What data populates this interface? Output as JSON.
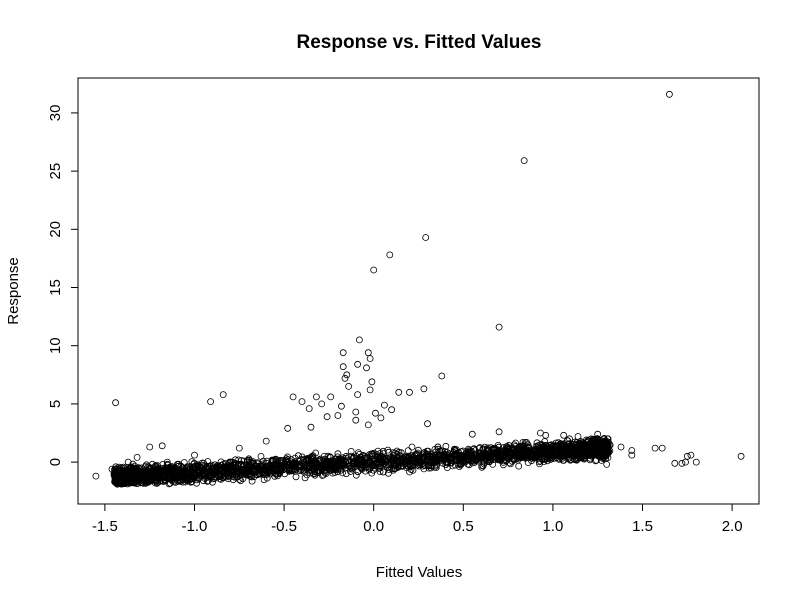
{
  "chart_data": {
    "type": "scatter",
    "title": "Response vs. Fitted Values",
    "xlabel": "Fitted Values",
    "ylabel": "Response",
    "xlim": [
      -1.65,
      2.15
    ],
    "ylim": [
      -3.6,
      33.0
    ],
    "xticks": [
      -1.5,
      -1.0,
      -0.5,
      0.0,
      0.5,
      1.0,
      1.5,
      2.0
    ],
    "xtick_labels": [
      "-1.5",
      "-1.0",
      "-0.5",
      "0.0",
      "0.5",
      "1.0",
      "1.5",
      "2.0"
    ],
    "yticks": [
      0,
      5,
      10,
      15,
      20,
      25,
      30
    ],
    "ytick_labels": [
      "0",
      "5",
      "10",
      "15",
      "20",
      "25",
      "30"
    ],
    "grid": false,
    "marker": "open-circle",
    "colors": {
      "point": "#000000",
      "axis": "#000000",
      "background": "#ffffff"
    },
    "cloud": {
      "description": "dense band of ~3000 points",
      "x_range": [
        -1.45,
        1.32
      ],
      "trend_intercept": 0.0,
      "trend_slope": 0.9,
      "spread": 0.75,
      "n": 3000
    },
    "points": [
      {
        "x": 1.65,
        "y": 31.6
      },
      {
        "x": 0.84,
        "y": 25.9
      },
      {
        "x": 0.29,
        "y": 19.3
      },
      {
        "x": 0.09,
        "y": 17.8
      },
      {
        "x": 0.0,
        "y": 16.5
      },
      {
        "x": 0.7,
        "y": 11.6
      },
      {
        "x": -0.08,
        "y": 10.5
      },
      {
        "x": -0.17,
        "y": 9.4
      },
      {
        "x": -0.03,
        "y": 9.4
      },
      {
        "x": -0.02,
        "y": 8.9
      },
      {
        "x": -0.09,
        "y": 8.4
      },
      {
        "x": -0.17,
        "y": 8.2
      },
      {
        "x": -0.04,
        "y": 8.1
      },
      {
        "x": -0.15,
        "y": 7.5
      },
      {
        "x": -0.16,
        "y": 7.2
      },
      {
        "x": -0.01,
        "y": 6.9
      },
      {
        "x": -0.14,
        "y": 6.5
      },
      {
        "x": 0.38,
        "y": 7.4
      },
      {
        "x": 0.28,
        "y": 6.3
      },
      {
        "x": 0.14,
        "y": 6.0
      },
      {
        "x": 0.2,
        "y": 6.0
      },
      {
        "x": -0.02,
        "y": 6.2
      },
      {
        "x": -0.09,
        "y": 5.8
      },
      {
        "x": -0.24,
        "y": 5.6
      },
      {
        "x": -0.32,
        "y": 5.6
      },
      {
        "x": -0.45,
        "y": 5.6
      },
      {
        "x": -0.29,
        "y": 5.0
      },
      {
        "x": -0.4,
        "y": 5.2
      },
      {
        "x": -0.36,
        "y": 4.6
      },
      {
        "x": -0.18,
        "y": 4.8
      },
      {
        "x": 0.06,
        "y": 4.9
      },
      {
        "x": 0.1,
        "y": 4.5
      },
      {
        "x": 0.01,
        "y": 4.2
      },
      {
        "x": -0.1,
        "y": 4.3
      },
      {
        "x": -0.2,
        "y": 4.0
      },
      {
        "x": 0.04,
        "y": 3.8
      },
      {
        "x": -0.26,
        "y": 3.9
      },
      {
        "x": 0.3,
        "y": 3.3
      },
      {
        "x": -0.48,
        "y": 2.9
      },
      {
        "x": -0.03,
        "y": 3.2
      },
      {
        "x": -0.84,
        "y": 5.8
      },
      {
        "x": -0.91,
        "y": 5.2
      },
      {
        "x": -1.44,
        "y": 5.1
      },
      {
        "x": -1.55,
        "y": -1.2
      },
      {
        "x": -1.46,
        "y": -0.6
      },
      {
        "x": -1.43,
        "y": -1.9
      },
      {
        "x": -1.37,
        "y": 0.0
      },
      {
        "x": -1.36,
        "y": -1.6
      },
      {
        "x": -1.32,
        "y": 0.4
      },
      {
        "x": -1.25,
        "y": 1.3
      },
      {
        "x": -1.18,
        "y": 1.4
      },
      {
        "x": 1.38,
        "y": 1.3
      },
      {
        "x": 1.44,
        "y": 0.6
      },
      {
        "x": 1.44,
        "y": 1.0
      },
      {
        "x": 1.57,
        "y": 1.2
      },
      {
        "x": 1.61,
        "y": 1.2
      },
      {
        "x": 1.68,
        "y": -0.1
      },
      {
        "x": 1.72,
        "y": -0.1
      },
      {
        "x": 1.74,
        "y": 0.0
      },
      {
        "x": 1.75,
        "y": 0.5
      },
      {
        "x": 1.77,
        "y": 0.6
      },
      {
        "x": 1.8,
        "y": 0.0
      },
      {
        "x": 2.05,
        "y": 0.5
      },
      {
        "x": 1.3,
        "y": -0.2
      },
      {
        "x": 1.28,
        "y": 0.3
      },
      {
        "x": 1.22,
        "y": 1.9
      },
      {
        "x": 0.93,
        "y": 2.5
      },
      {
        "x": 0.96,
        "y": 2.3
      },
      {
        "x": 1.06,
        "y": 2.3
      },
      {
        "x": 1.14,
        "y": 2.2
      },
      {
        "x": 1.25,
        "y": 2.4
      },
      {
        "x": -0.1,
        "y": 3.6
      },
      {
        "x": -0.35,
        "y": 3.0
      },
      {
        "x": -0.6,
        "y": 1.8
      },
      {
        "x": -0.75,
        "y": 1.2
      },
      {
        "x": -1.0,
        "y": 0.6
      },
      {
        "x": 0.55,
        "y": 2.4
      },
      {
        "x": 0.7,
        "y": 2.6
      }
    ]
  }
}
